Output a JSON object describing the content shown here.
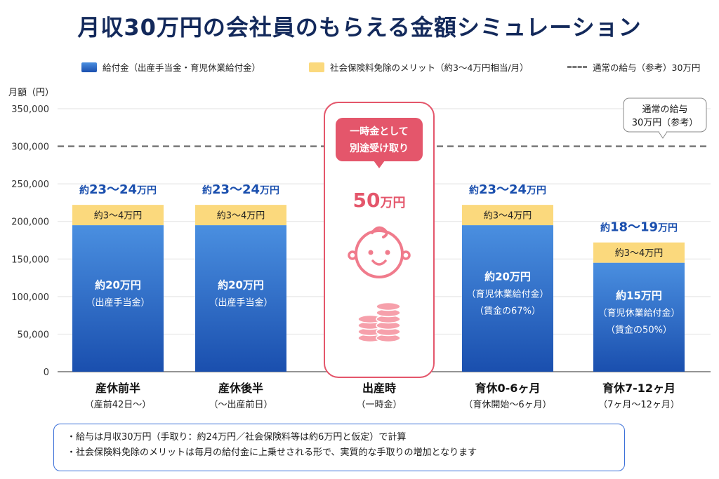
{
  "title": "月収30万円の会社員のもらえる金額シミュレーション",
  "legend": {
    "benefit": "給付金（出産手当金・育児休業給付金）",
    "merit": "社会保険料免除のメリット（約3〜4万円相当/月）",
    "reference": "通常の給与（参考）30万円"
  },
  "colors": {
    "benefit_top": "#4a8fe0",
    "benefit_bottom": "#1a4fae",
    "merit": "#fbd97d",
    "reference_line": "#777777",
    "highlight": "#e4566b",
    "total_label": "#1a4fae"
  },
  "chart_data": {
    "type": "bar",
    "stacked": true,
    "ylabel": "月額（円）",
    "ylim": [
      0,
      350000
    ],
    "yticks": [
      "0",
      "50,000",
      "100,000",
      "150,000",
      "200,000",
      "250,000",
      "300,000",
      "350,000"
    ],
    "ytick_values": [
      0,
      50000,
      100000,
      150000,
      200000,
      250000,
      300000,
      350000
    ],
    "grid": true,
    "reference_line": {
      "value": 300000,
      "callout_line1": "通常の給与",
      "callout_line2": "30万円（参考）"
    },
    "categories": [
      {
        "label": "産休前半",
        "sublabel": "（産前42日〜）",
        "benefit": 195000,
        "merit": 27000,
        "total_prefix": "約",
        "total_value": "23〜24",
        "total_unit": "万円",
        "merit_label": "約3〜4万円",
        "benefit_line1": "約20万円",
        "benefit_line2": "（出産手当金）",
        "benefit_line3": ""
      },
      {
        "label": "産休後半",
        "sublabel": "（〜出産前日）",
        "benefit": 195000,
        "merit": 27000,
        "total_prefix": "約",
        "total_value": "23〜24",
        "total_unit": "万円",
        "merit_label": "約3〜4万円",
        "benefit_line1": "約20万円",
        "benefit_line2": "（出産手当金）",
        "benefit_line3": ""
      },
      {
        "label": "出産時",
        "sublabel": "（一時金）",
        "lump_sum": true,
        "bubble_line1": "一時金として",
        "bubble_line2": "別途受け取り",
        "lump_value": "50",
        "lump_unit": "万円"
      },
      {
        "label": "育休0-6ヶ月",
        "sublabel": "（育休開始〜6ヶ月）",
        "benefit": 195000,
        "merit": 27000,
        "total_prefix": "約",
        "total_value": "23〜24",
        "total_unit": "万円",
        "merit_label": "約3〜4万円",
        "benefit_line1": "約20万円",
        "benefit_line2": "（育児休業給付金）",
        "benefit_line3": "（賃金の67%）"
      },
      {
        "label": "育休7-12ヶ月",
        "sublabel": "（7ヶ月〜12ヶ月）",
        "benefit": 145000,
        "merit": 27000,
        "total_prefix": "約",
        "total_value": "18〜19",
        "total_unit": "万円",
        "merit_label": "約3〜4万円",
        "benefit_line1": "約15万円",
        "benefit_line2": "（育児休業給付金）",
        "benefit_line3": "（賃金の50%）"
      }
    ]
  },
  "notes": [
    "・給与は月収30万円（手取り：約24万円／社会保険料等は約6万円と仮定）で計算",
    "・社会保険料免除のメリットは毎月の給付金に上乗せされる形で、実質的な手取りの増加となります"
  ]
}
